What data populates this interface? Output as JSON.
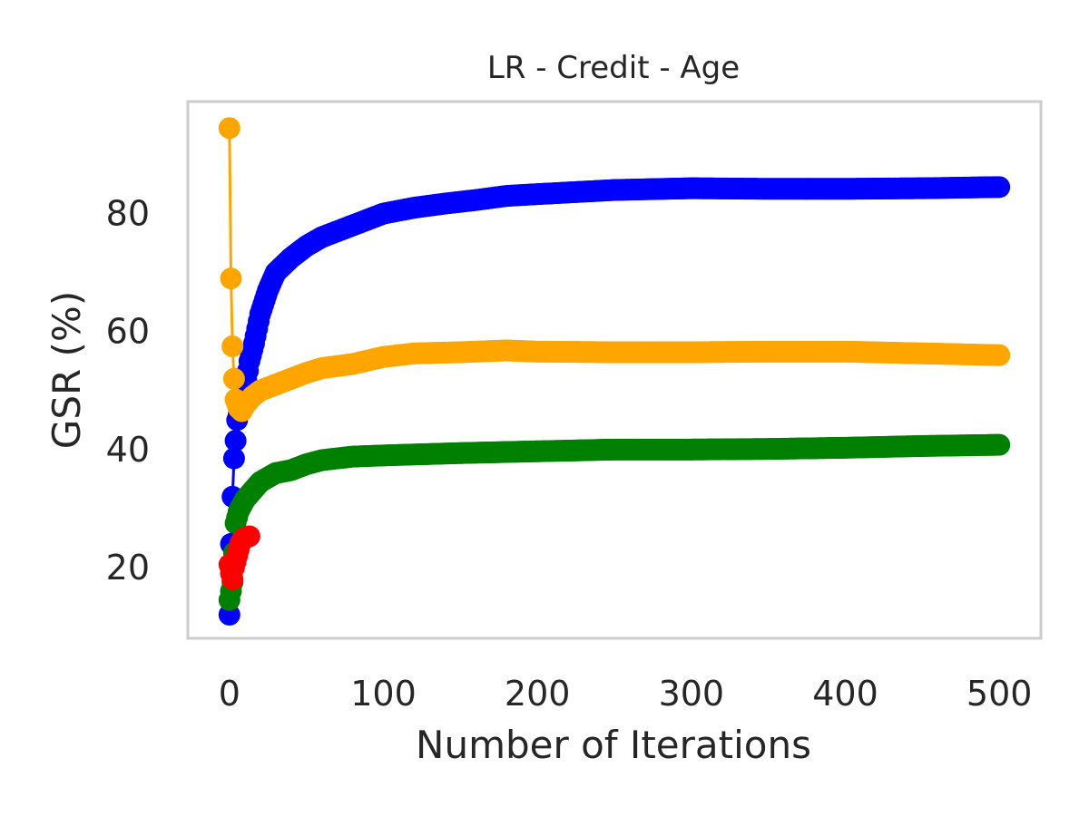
{
  "chart_data": {
    "type": "line",
    "title": "LR - Credit - Age",
    "xlabel": "Number of Iterations",
    "ylabel": "GSR (%)",
    "xlim": [
      -27,
      527
    ],
    "ylim": [
      8,
      99
    ],
    "xticks": [
      0,
      100,
      200,
      300,
      400,
      500
    ],
    "yticks": [
      20,
      40,
      60,
      80
    ],
    "xtick_labels": [
      "0",
      "100",
      "200",
      "300",
      "400",
      "500"
    ],
    "ytick_labels": [
      "20",
      "40",
      "60",
      "80"
    ],
    "grid": false,
    "legend": "none",
    "series": [
      {
        "name": "blue",
        "color": "#0000ff",
        "dense": true,
        "points": [
          [
            0,
            12
          ],
          [
            1,
            24
          ],
          [
            2,
            32
          ],
          [
            3,
            38.5
          ],
          [
            4,
            41.5
          ],
          [
            5,
            45
          ],
          [
            7,
            47
          ],
          [
            10,
            50
          ],
          [
            13,
            55
          ],
          [
            16,
            58
          ],
          [
            20,
            63
          ],
          [
            25,
            67
          ],
          [
            30,
            70
          ],
          [
            40,
            72.5
          ],
          [
            50,
            74.5
          ],
          [
            60,
            76
          ],
          [
            70,
            77
          ],
          [
            80,
            78
          ],
          [
            90,
            79
          ],
          [
            100,
            80
          ],
          [
            120,
            81
          ],
          [
            140,
            81.7
          ],
          [
            160,
            82.3
          ],
          [
            180,
            83
          ],
          [
            200,
            83.3
          ],
          [
            250,
            84
          ],
          [
            300,
            84.3
          ],
          [
            350,
            84.2
          ],
          [
            400,
            84.2
          ],
          [
            450,
            84.3
          ],
          [
            500,
            84.5
          ]
        ]
      },
      {
        "name": "orange",
        "color": "#ffa500",
        "dense": true,
        "points": [
          [
            0,
            94.5
          ],
          [
            1,
            69
          ],
          [
            2,
            57.5
          ],
          [
            3,
            52
          ],
          [
            4,
            48.5
          ],
          [
            6,
            47
          ],
          [
            8,
            46.5
          ],
          [
            10,
            47.5
          ],
          [
            15,
            49
          ],
          [
            20,
            50
          ],
          [
            30,
            51
          ],
          [
            40,
            52
          ],
          [
            50,
            53
          ],
          [
            60,
            53.8
          ],
          [
            80,
            54.5
          ],
          [
            100,
            55.7
          ],
          [
            120,
            56.3
          ],
          [
            150,
            56.5
          ],
          [
            180,
            56.8
          ],
          [
            200,
            56.6
          ],
          [
            250,
            56.5
          ],
          [
            300,
            56.5
          ],
          [
            350,
            56.6
          ],
          [
            400,
            56.6
          ],
          [
            450,
            56.3
          ],
          [
            500,
            56
          ]
        ]
      },
      {
        "name": "green",
        "color": "#008000",
        "dense": true,
        "points": [
          [
            0,
            14.5
          ],
          [
            2,
            17.5
          ],
          [
            4,
            27.5
          ],
          [
            6,
            29.5
          ],
          [
            8,
            30.5
          ],
          [
            10,
            31.5
          ],
          [
            15,
            33
          ],
          [
            20,
            34.5
          ],
          [
            30,
            36
          ],
          [
            40,
            36.5
          ],
          [
            50,
            37.5
          ],
          [
            60,
            38.2
          ],
          [
            80,
            38.8
          ],
          [
            100,
            39
          ],
          [
            150,
            39.4
          ],
          [
            200,
            39.7
          ],
          [
            250,
            40
          ],
          [
            300,
            40
          ],
          [
            350,
            40.1
          ],
          [
            400,
            40.3
          ],
          [
            450,
            40.6
          ],
          [
            500,
            40.8
          ]
        ]
      },
      {
        "name": "red",
        "color": "#ff0000",
        "dense": false,
        "points": [
          [
            0,
            20.5
          ],
          [
            1,
            19
          ],
          [
            2,
            18
          ],
          [
            3,
            20
          ],
          [
            4,
            21
          ],
          [
            5,
            22
          ],
          [
            6,
            23
          ],
          [
            7,
            24
          ],
          [
            8,
            24.5
          ],
          [
            9,
            24.8
          ],
          [
            10,
            25
          ],
          [
            11,
            25.1
          ],
          [
            12,
            25.2
          ],
          [
            13,
            25.3
          ]
        ]
      }
    ]
  }
}
